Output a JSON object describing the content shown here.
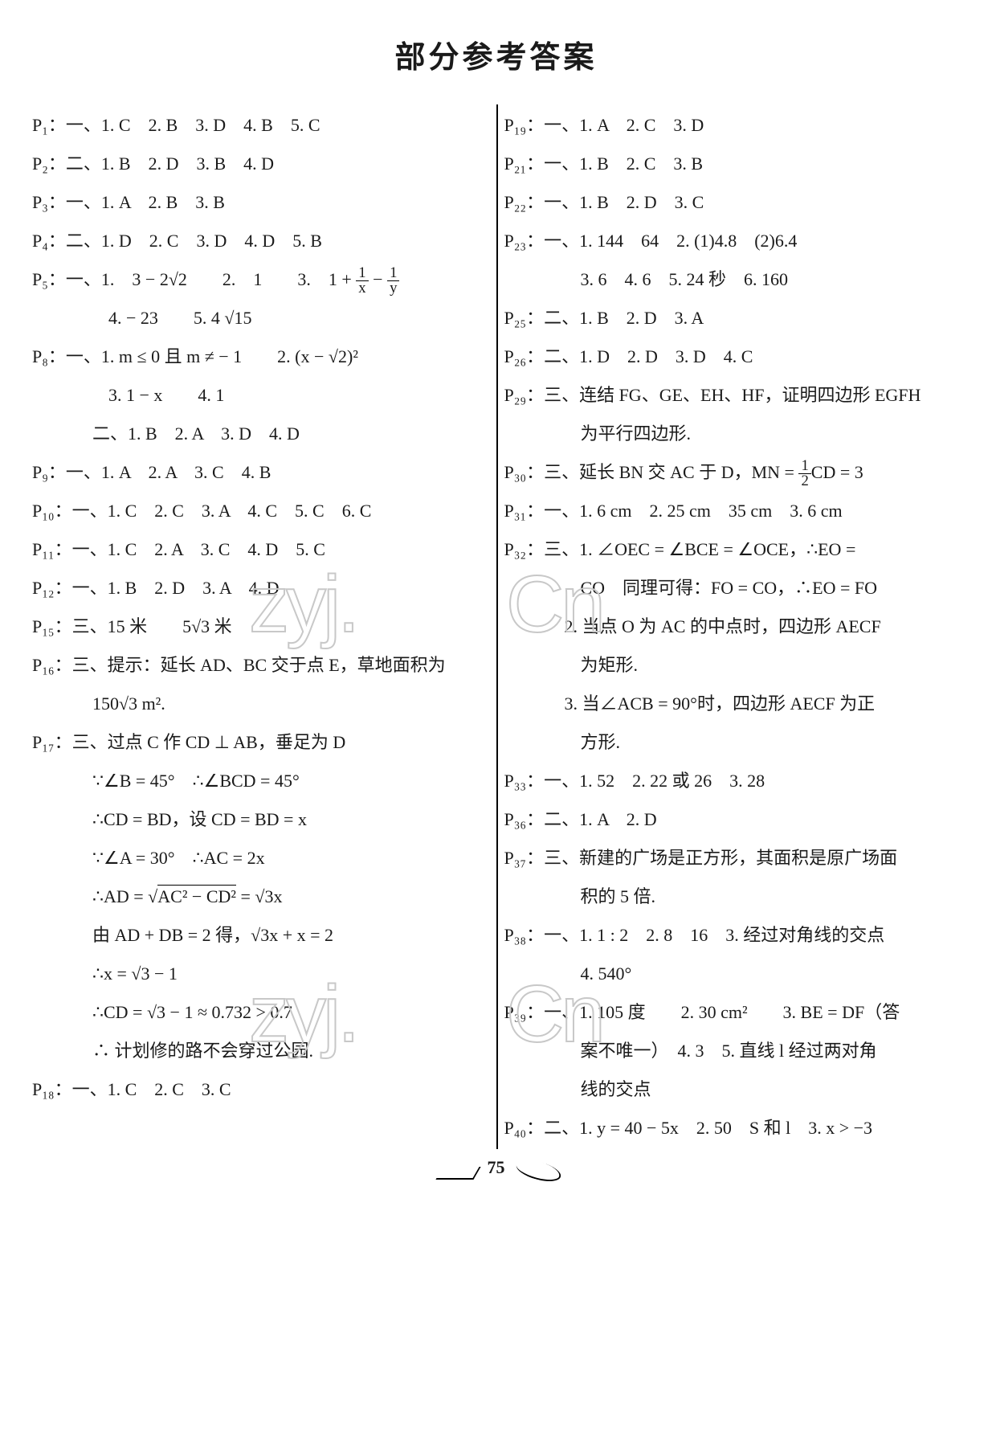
{
  "title": "部分参考答案",
  "page_number": "75",
  "watermark_text_1": "zyj.",
  "watermark_text_2": "Cn",
  "left_lines": {
    "l1": "P₁：一、1. C　2. B　3. D　4. B　5. C",
    "l2": "P₂：二、1. B　2. D　3. B　4. D",
    "l3": "P₃：一、1. A　2. B　3. B",
    "l4": "P₄：二、1. D　2. C　3. D　4. D　5. B",
    "l5a": "P₅：一、1.　3 − 2√2　　2.　1　　3.　1 + ",
    "l5b": " − ",
    "l6": "4. − 23　　5. 4 √15",
    "l7": "P₈：一、1. m ≤ 0 且 m ≠ − 1　　2. (x − √2)²",
    "l8": "3. 1 − x　　4. 1",
    "l9": "二、1. B　2. A　3. D　4. D",
    "l10": "P₉：一、1. A　2. A　3. C　4. B",
    "l11": "P₁₀：一、1. C　2. C　3. A　4. C　5. C　6. C",
    "l12": "P₁₁：一、1. C　2. A　3. C　4. D　5. C",
    "l13": "P₁₂：一、1. B　2. D　3. A　4. D",
    "l14": "P₁₅：三、15 米　　5√3 米",
    "l15": "P₁₆：三、提示：延长 AD、BC 交于点 E，草地面积为",
    "l16": "150√3 m².",
    "l17": "P₁₇：三、过点 C 作 CD ⊥ AB，垂足为 D",
    "l18": "∵∠B = 45°　∴∠BCD = 45°",
    "l19": "∴CD = BD，设 CD = BD = x",
    "l20": "∵∠A = 30°　∴AC = 2x",
    "l21a": "∴AD = √",
    "l21b": "AC² − CD²",
    "l21c": " = √3x",
    "l22": "由 AD + DB = 2 得，√3x + x = 2",
    "l23": "∴x = √3 − 1",
    "l24": "∴CD = √3 − 1 ≈ 0.732 > 0.7",
    "l25": "∴ 计划修的路不会穿过公园.",
    "l26": "P₁₈：一、1. C　2. C　3. C"
  },
  "right_lines": {
    "r1": "P₁₉：一、1. A　2. C　3. D",
    "r2": "P₂₁：一、1. B　2. C　3. B",
    "r3": "P₂₂：一、1. B　2. D　3. C",
    "r4": "P₂₃：一、1. 144　64　2. (1)4.8　(2)6.4",
    "r5": "3. 6　4. 6　5. 24 秒　6. 160",
    "r6": "P₂₅：二、1. B　2. D　3. A",
    "r7": "P₂₆：二、1. D　2. D　3. D　4. C",
    "r8": "P₂₉：三、连结 FG、GE、EH、HF，证明四边形 EGFH",
    "r9": "为平行四边形.",
    "r10a": "P₃₀：三、延长 BN 交 AC 于 D，MN = ",
    "r10b": "CD = 3",
    "r11": "P₃₁：一、1. 6 cm　2. 25 cm　35 cm　3. 6 cm",
    "r12": "P₃₂：三、1. ∠OEC = ∠BCE = ∠OCE，∴EO =",
    "r13": "CO　同理可得：FO = CO，∴EO = FO",
    "r14": "2. 当点 O 为 AC 的中点时，四边形 AECF",
    "r15": "为矩形.",
    "r16": "3. 当∠ACB = 90°时，四边形 AECF 为正",
    "r17": "方形.",
    "r18": "P₃₃：一、1. 52　2. 22 或 26　3. 28",
    "r19": "P₃₆：二、1. A　2. D",
    "r20": "P₃₇：三、新建的广场是正方形，其面积是原广场面",
    "r21": "积的 5 倍.",
    "r22": "P₃₈：一、1. 1 : 2　2. 8　16　3. 经过对角线的交点",
    "r23": "4. 540°",
    "r24": "P₃₉：一、1. 105 度　　2. 30 cm²　　3. BE = DF（答",
    "r25": "案不唯一）　4. 3　5. 直线 l 经过两对角",
    "r26": "线的交点",
    "r27": "P₄₀：二、1. y = 40 − 5x　2. 50　S 和 l　3. x > −3"
  }
}
